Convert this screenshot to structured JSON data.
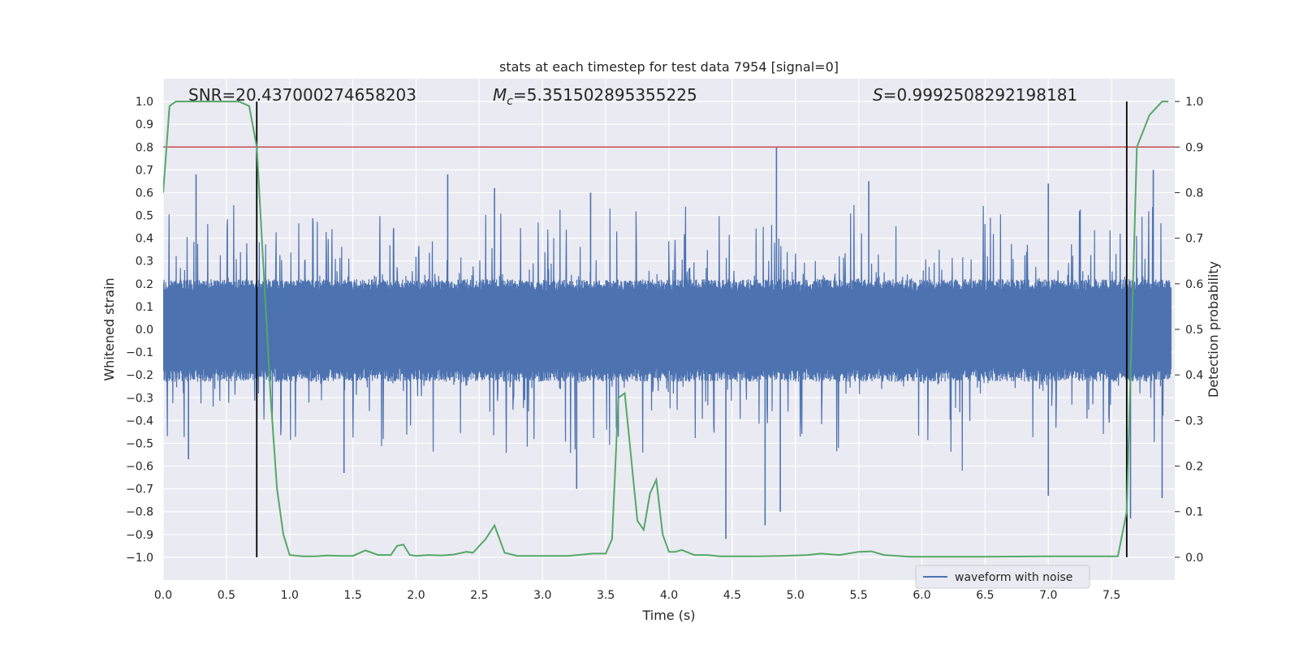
{
  "chart_data": {
    "type": "line",
    "title": "stats at each timestep for test data 7954 [signal=0]",
    "xlabel": "Time (s)",
    "ylabel_left": "Whitened strain",
    "ylabel_right": "Detection probability",
    "xlim": [
      0.0,
      8.0
    ],
    "ylim_left": [
      -1.1,
      1.1
    ],
    "ylim_right": [
      -0.05,
      1.05
    ],
    "x_ticks": [
      "0.0",
      "0.5",
      "1.0",
      "1.5",
      "2.0",
      "2.5",
      "3.0",
      "3.5",
      "4.0",
      "4.5",
      "5.0",
      "5.5",
      "6.0",
      "6.5",
      "7.0",
      "7.5"
    ],
    "y_left_ticks": [
      "1.0",
      "0.9",
      "0.8",
      "0.7",
      "0.6",
      "0.5",
      "0.4",
      "0.3",
      "0.2",
      "0.1",
      "0.0",
      "-0.1",
      "-0.2",
      "-0.3",
      "-0.4",
      "-0.5",
      "-0.6",
      "-0.7",
      "-0.8",
      "-0.9",
      "-1.0"
    ],
    "y_right_ticks": [
      "1.0",
      "0.9",
      "0.8",
      "0.7",
      "0.6",
      "0.5",
      "0.4",
      "0.3",
      "0.2",
      "0.1",
      "0.0"
    ],
    "annotations": {
      "snr": "SNR=20.437000274658203",
      "mc_symbol": "M",
      "mc_sub": "c",
      "mc_value": "=5.351502895355225",
      "s_symbol": "S",
      "s_value": "=0.9992508292198181"
    },
    "threshold": {
      "value_left": 0.8,
      "color": "#c44e52"
    },
    "vertical_lines": [
      0.74,
      7.62
    ],
    "legend": {
      "entries": [
        "waveform with noise"
      ],
      "location": "lower-right"
    },
    "series": [
      {
        "name": "waveform with noise",
        "color": "#4c72b0",
        "envelope": {
          "core_amplitude": 0.2,
          "typical_peak": 0.45,
          "max_peak": 0.8,
          "min_trough": -0.92
        },
        "notable_peaks": [
          [
            0.26,
            0.68
          ],
          [
            0.74,
            0.6
          ],
          [
            2.25,
            0.68
          ],
          [
            2.62,
            0.62
          ],
          [
            3.38,
            0.6
          ],
          [
            4.85,
            0.8
          ],
          [
            5.58,
            0.65
          ],
          [
            7.0,
            0.64
          ],
          [
            7.83,
            0.7
          ]
        ],
        "notable_troughs": [
          [
            0.2,
            -0.57
          ],
          [
            1.43,
            -0.63
          ],
          [
            3.27,
            -0.7
          ],
          [
            4.45,
            -0.92
          ],
          [
            4.76,
            -0.86
          ],
          [
            4.88,
            -0.8
          ],
          [
            7.0,
            -0.73
          ],
          [
            7.65,
            -0.83
          ],
          [
            7.9,
            -0.74
          ]
        ]
      },
      {
        "name": "detection probability",
        "color": "#55a868",
        "axis": "right",
        "x": [
          0.0,
          0.05,
          0.1,
          0.2,
          0.3,
          0.4,
          0.5,
          0.6,
          0.68,
          0.74,
          0.8,
          0.85,
          0.9,
          0.95,
          1.0,
          1.1,
          1.2,
          1.3,
          1.4,
          1.5,
          1.6,
          1.7,
          1.8,
          1.85,
          1.9,
          1.95,
          2.0,
          2.1,
          2.2,
          2.3,
          2.4,
          2.45,
          2.55,
          2.62,
          2.7,
          2.8,
          3.0,
          3.2,
          3.4,
          3.5,
          3.55,
          3.6,
          3.65,
          3.7,
          3.75,
          3.8,
          3.85,
          3.9,
          3.95,
          4.0,
          4.05,
          4.1,
          4.2,
          4.3,
          4.4,
          4.5,
          4.7,
          4.9,
          5.1,
          5.2,
          5.35,
          5.5,
          5.6,
          5.7,
          5.9,
          6.2,
          6.5,
          7.0,
          7.5,
          7.55,
          7.62,
          7.7,
          7.8,
          7.9,
          7.95
        ],
        "values": [
          0.8,
          0.99,
          1.0,
          1.0,
          1.0,
          1.0,
          1.0,
          1.0,
          0.99,
          0.9,
          0.6,
          0.35,
          0.15,
          0.05,
          0.005,
          0.002,
          0.002,
          0.004,
          0.003,
          0.003,
          0.015,
          0.005,
          0.005,
          0.025,
          0.028,
          0.005,
          0.003,
          0.005,
          0.004,
          0.006,
          0.012,
          0.01,
          0.04,
          0.07,
          0.01,
          0.003,
          0.003,
          0.003,
          0.008,
          0.008,
          0.04,
          0.35,
          0.36,
          0.22,
          0.08,
          0.06,
          0.14,
          0.17,
          0.05,
          0.012,
          0.012,
          0.016,
          0.005,
          0.005,
          0.002,
          0.002,
          0.002,
          0.003,
          0.005,
          0.008,
          0.005,
          0.012,
          0.013,
          0.005,
          0.001,
          0.001,
          0.001,
          0.002,
          0.002,
          0.002,
          0.1,
          0.9,
          0.97,
          1.0,
          1.0
        ]
      }
    ]
  }
}
